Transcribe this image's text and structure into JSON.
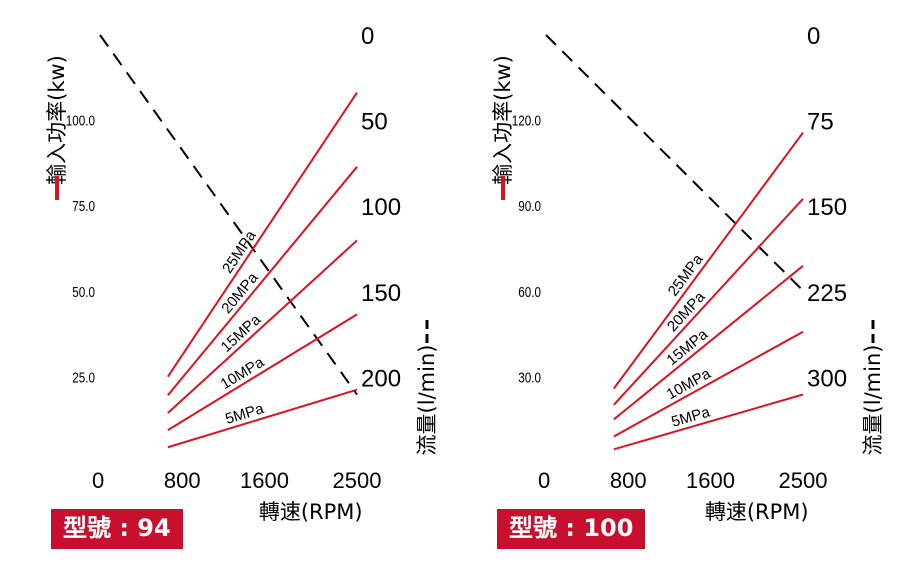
{
  "chart_data": [
    {
      "type": "line",
      "model_label": "型號 : 94",
      "y_left_label": "輸入功率(kw)",
      "y_left_ticks": [
        25,
        50,
        75,
        100
      ],
      "y_left_tick_labels": [
        "25.0",
        "50.0",
        "75.0",
        "100.0"
      ],
      "y_left_lim": [
        0,
        125
      ],
      "y_right_label": "流量(l/min)",
      "y_right_ticks": [
        0,
        50,
        100,
        150,
        200
      ],
      "y_right_tick_labels": [
        "0",
        "50",
        "100",
        "150",
        "200"
      ],
      "y_right_lim": [
        0,
        250
      ],
      "x_label": "轉速(RPM)",
      "x_ticks": [
        0,
        800,
        1600,
        2500
      ],
      "x_tick_labels": [
        "0",
        "800",
        "1600",
        "2500"
      ],
      "x_lim": [
        0,
        2500
      ],
      "flow_series": {
        "style": "dashed",
        "color": "#000000",
        "x": [
          0,
          2500
        ],
        "y": [
          0,
          210
        ]
      },
      "series": [
        {
          "name": "5MPa",
          "color": "#e0101f",
          "x": [
            660,
            2500
          ],
          "y": [
            4.6,
            21.4
          ]
        },
        {
          "name": "10MPa",
          "color": "#e0101f",
          "x": [
            660,
            2500
          ],
          "y": [
            9.6,
            43.4
          ]
        },
        {
          "name": "15MPa",
          "color": "#e0101f",
          "x": [
            660,
            2500
          ],
          "y": [
            14.6,
            65.0
          ]
        },
        {
          "name": "20MPa",
          "color": "#e0101f",
          "x": [
            660,
            2500
          ],
          "y": [
            19.8,
            86.5
          ]
        },
        {
          "name": "25MPa",
          "color": "#e0101f",
          "x": [
            660,
            2500
          ],
          "y": [
            25.2,
            108.2
          ]
        }
      ]
    },
    {
      "type": "line",
      "model_label": "型號 : 100",
      "y_left_label": "輸入功率(kw)",
      "y_left_ticks": [
        30,
        60,
        90,
        120
      ],
      "y_left_tick_labels": [
        "30.0",
        "60.0",
        "90.0",
        "120.0"
      ],
      "y_left_lim": [
        0,
        150
      ],
      "y_right_label": "流量(l/min)",
      "y_right_ticks": [
        0,
        75,
        150,
        225,
        300
      ],
      "y_right_tick_labels": [
        "0",
        "75",
        "150",
        "225",
        "300"
      ],
      "y_right_lim": [
        0,
        375
      ],
      "x_label": "轉速(RPM)",
      "x_ticks": [
        0,
        800,
        1600,
        2500
      ],
      "x_tick_labels": [
        "0",
        "800",
        "1600",
        "2500"
      ],
      "x_lim": [
        0,
        2500
      ],
      "flow_series": {
        "style": "dashed",
        "color": "#000000",
        "x": [
          0,
          2500
        ],
        "y": [
          0,
          224
        ]
      },
      "series": [
        {
          "name": "5MPa",
          "color": "#e0101f",
          "x": [
            660,
            2500
          ],
          "y": [
            4.8,
            24.0
          ]
        },
        {
          "name": "10MPa",
          "color": "#e0101f",
          "x": [
            660,
            2500
          ],
          "y": [
            9.3,
            46.0
          ]
        },
        {
          "name": "15MPa",
          "color": "#e0101f",
          "x": [
            660,
            2500
          ],
          "y": [
            15.3,
            69.1
          ]
        },
        {
          "name": "20MPa",
          "color": "#e0101f",
          "x": [
            660,
            2500
          ],
          "y": [
            20.4,
            92.6
          ]
        },
        {
          "name": "25MPa",
          "color": "#e0101f",
          "x": [
            660,
            2500
          ],
          "y": [
            26.1,
            115.8
          ]
        }
      ]
    }
  ]
}
